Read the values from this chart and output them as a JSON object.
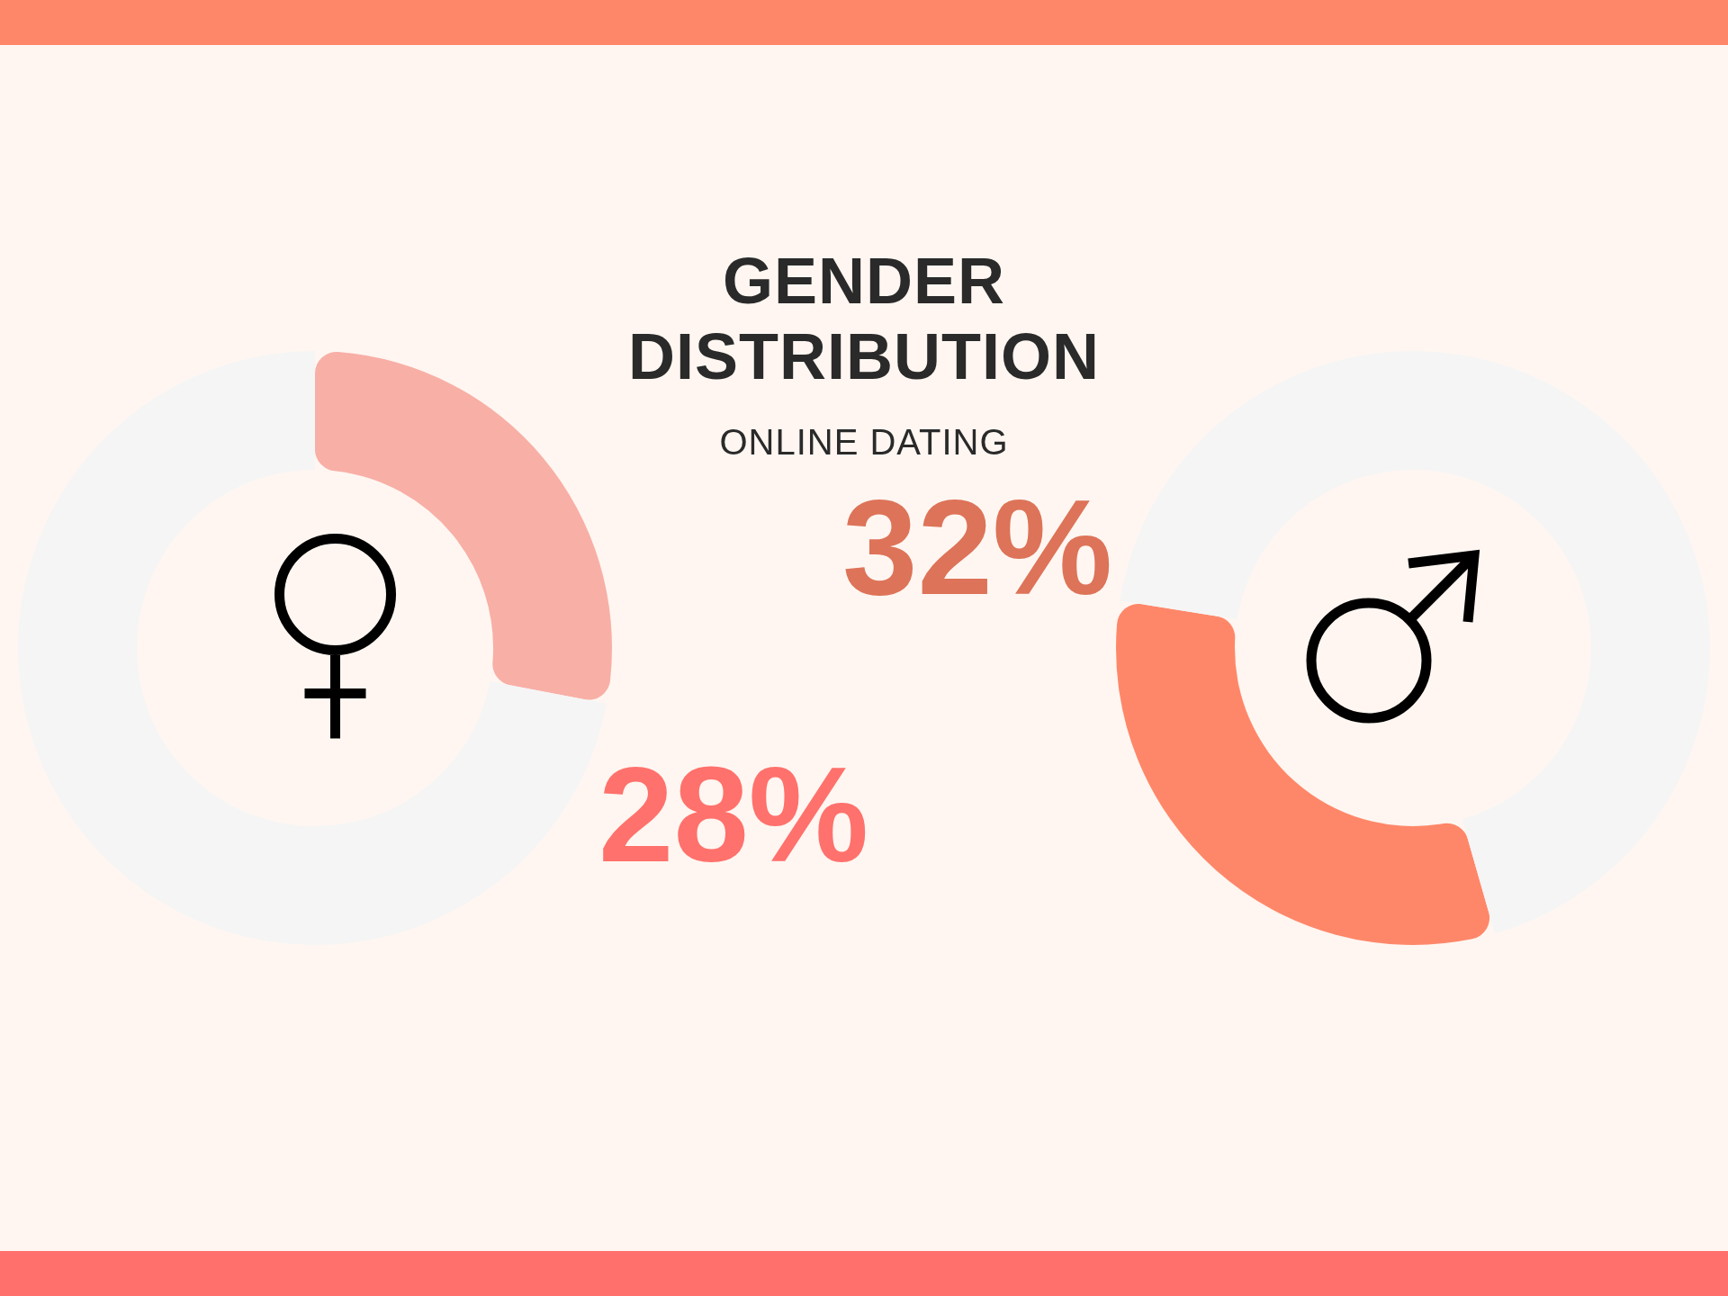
{
  "chart_data": [
    {
      "type": "other",
      "title": "GENDER DISTRIBUTION",
      "subtitle": "ONLINE DATING"
    },
    {
      "type": "donut",
      "categories": [
        null,
        null
      ],
      "values": [
        28,
        72
      ],
      "colors": [
        "#f8afa6",
        "#f5f5f5"
      ],
      "value_labels": [
        "28%",
        null
      ]
    },
    {
      "type": "donut",
      "categories": [
        null,
        null
      ],
      "values": [
        32,
        68
      ],
      "colors": [
        "#ff8769",
        "#f5f5f5"
      ],
      "value_labels": [
        "32%",
        null
      ]
    }
  ]
}
